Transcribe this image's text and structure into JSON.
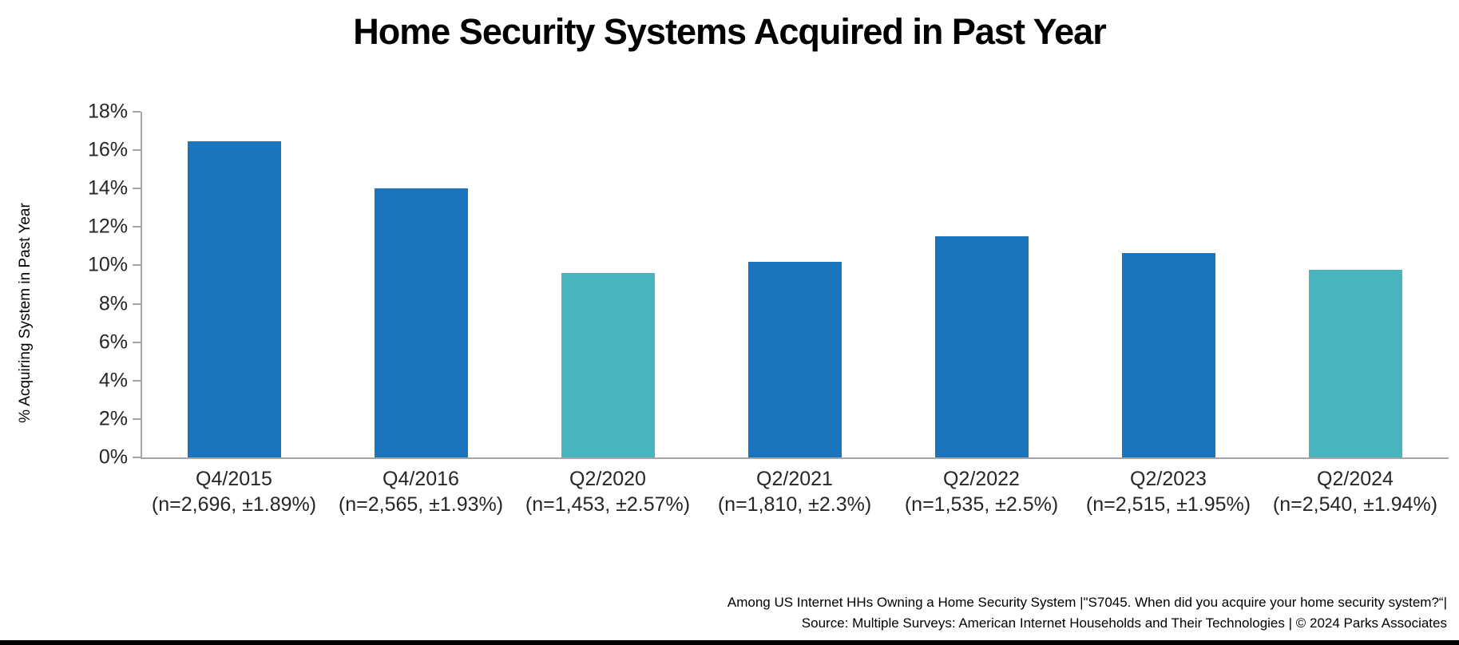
{
  "title": "Home Security Systems Acquired in Past Year",
  "y_axis": {
    "label": "% Acquiring System in Past Year",
    "ticks": [
      "0%",
      "2%",
      "4%",
      "6%",
      "8%",
      "10%",
      "12%",
      "14%",
      "16%",
      "18%"
    ],
    "min": 0,
    "max": 18,
    "step": 2
  },
  "chart_data": {
    "type": "bar",
    "title": "Home Security Systems Acquired in Past Year",
    "xlabel": "",
    "ylabel": "% Acquiring System in Past Year",
    "ylim": [
      0,
      18
    ],
    "grid": false,
    "legend": false,
    "categories": [
      "Q4/2015",
      "Q4/2016",
      "Q2/2020",
      "Q2/2021",
      "Q2/2022",
      "Q2/2023",
      "Q2/2024"
    ],
    "sample_labels": [
      "(n=2,696, ±1.89%)",
      "(n=2,565, ±1.93%)",
      "(n=1,453, ±2.57%)",
      "(n=1,810, ±2.3%)",
      "(n=1,535, ±2.5%)",
      "(n=2,515, ±1.95%)",
      "(n=2,540, ±1.94%)"
    ],
    "values": [
      16.45,
      14.0,
      9.6,
      10.2,
      11.5,
      10.65,
      9.75
    ],
    "bar_colors": [
      "#1c75bc",
      "#1c75bc",
      "#48b4be",
      "#1c75bc",
      "#1c75bc",
      "#1c75bc",
      "#48b4be"
    ]
  },
  "colors": {
    "blue": "#1c75bc",
    "teal": "#48b4be",
    "axis": "#a6a6a6",
    "bottom_bar": "#000000"
  },
  "footer": {
    "line1": "Among US Internet HHs Owning a Home Security System |\"S7045. When did you acquire your home security system?“|",
    "line2": "Source: Multiple Surveys: American Internet Households and Their Technologies | © 2024 Parks Associates"
  }
}
